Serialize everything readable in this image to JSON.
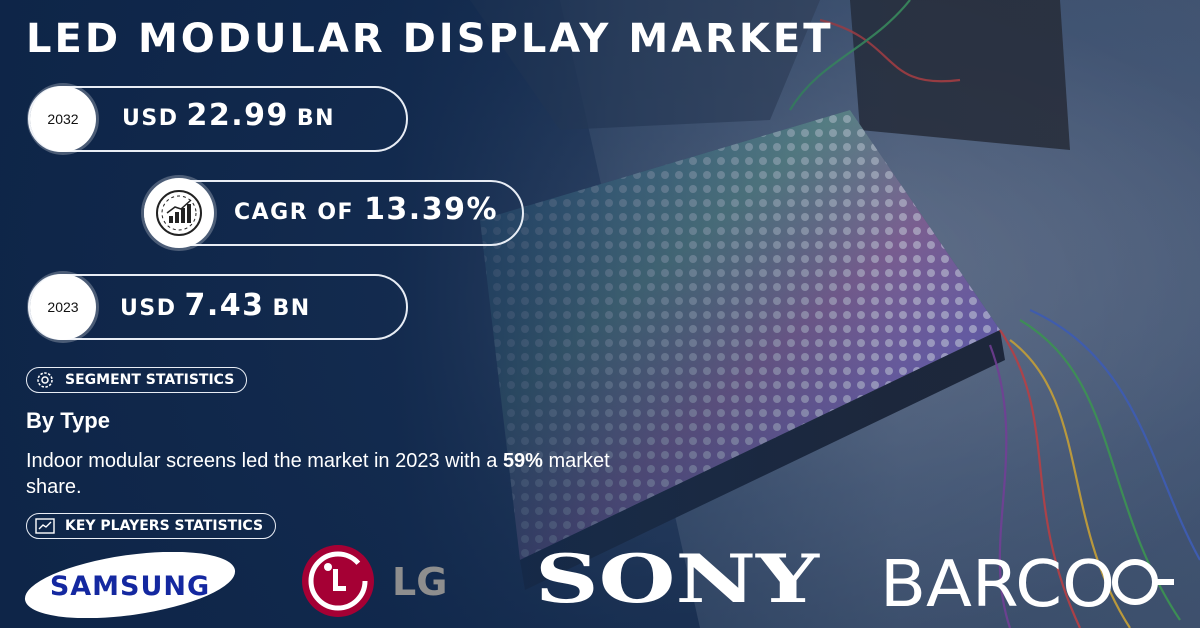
{
  "title": "LED MODULAR DISPLAY MARKET",
  "forecast": {
    "year": "2032",
    "prefix": "USD",
    "value": "22.99",
    "unit": "BN"
  },
  "cagr": {
    "prefix": "CAGR OF",
    "value": "13.39%",
    "icon": "growth-chart-icon"
  },
  "base": {
    "year": "2023",
    "prefix": "USD",
    "value": "7.43",
    "unit": "BN"
  },
  "segment_badge": {
    "label": "SEGMENT STATISTICS",
    "icon": "gears-icon"
  },
  "segment": {
    "heading": "By Type",
    "text_before": "Indoor modular screens led the market in 2023 with a ",
    "highlight": "59%",
    "text_after": " market share."
  },
  "players_badge": {
    "label": "KEY PLAYERS STATISTICS",
    "icon": "chart-icon"
  },
  "players": [
    "SAMSUNG",
    "LG",
    "SONY",
    "BARCO"
  ],
  "colors": {
    "background": "#14294a",
    "lg_red": "#a50034",
    "samsung_blue": "#1428a0"
  }
}
